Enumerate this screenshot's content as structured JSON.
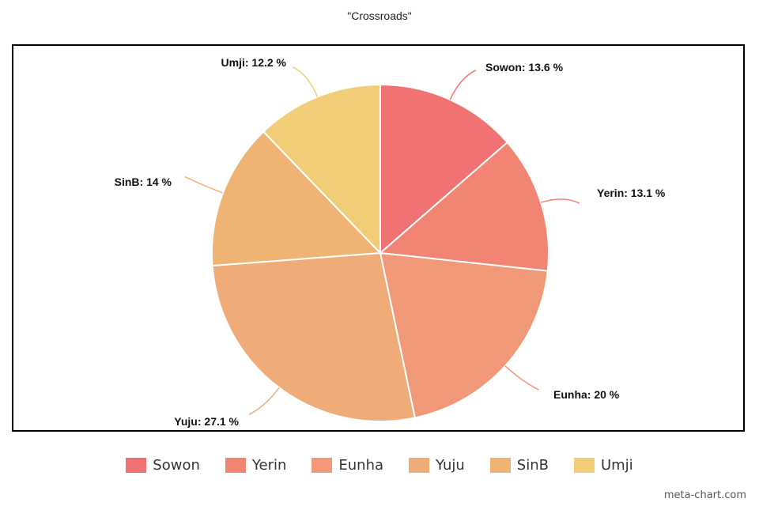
{
  "chart_data": {
    "type": "pie",
    "title": "\"Crossroads\"",
    "categories": [
      "Sowon",
      "Yerin",
      "Eunha",
      "Yuju",
      "SinB",
      "Umji"
    ],
    "values": [
      13.6,
      13.1,
      20,
      27.1,
      14,
      12.2
    ],
    "labels": [
      "Sowon: 13.6 %",
      "Yerin: 13.1 %",
      "Eunha: 20 %",
      "Yuju: 27.1 %",
      "SinB: 14 %",
      "Umji: 12.2 %"
    ],
    "colors": [
      "#f07272",
      "#f28474",
      "#f09877",
      "#efab78",
      "#efb474",
      "#f1cd78"
    ],
    "start_angle": "12 o'clock",
    "direction": "clockwise",
    "legend_position": "bottom-center"
  },
  "watermark": "meta-chart.com"
}
